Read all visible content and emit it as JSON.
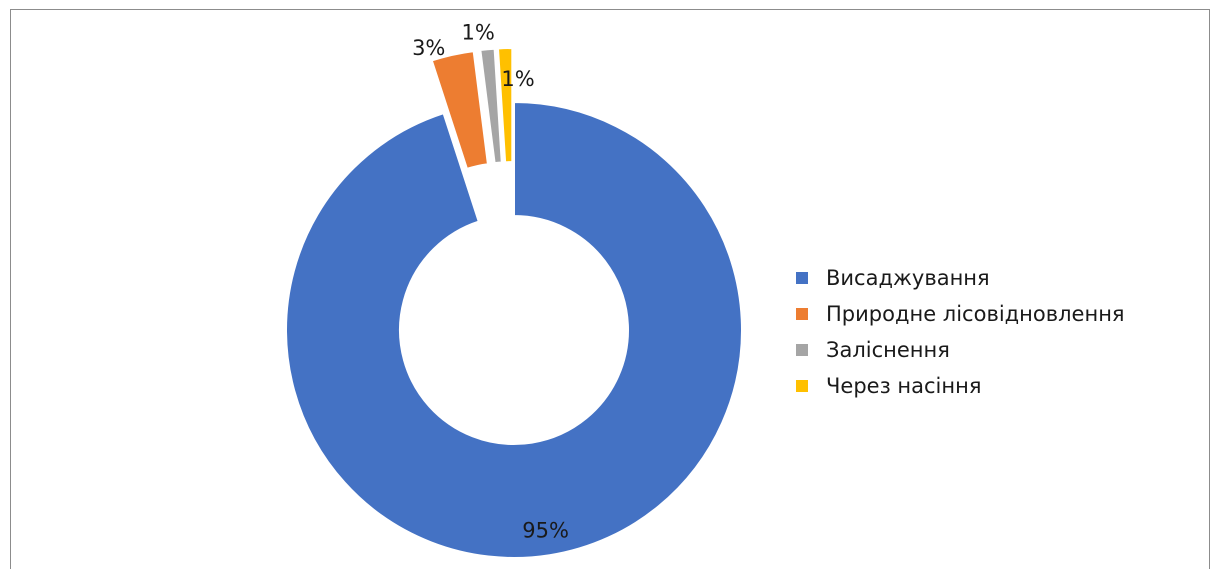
{
  "chart_data": {
    "type": "pie",
    "variant": "donut",
    "title": "",
    "categories": [
      "Висаджування",
      "Природне лісовідновлення",
      "Заліснення",
      "Через насіння"
    ],
    "values": [
      95,
      3,
      1,
      1
    ],
    "value_labels": [
      "95%",
      "3%",
      "1%",
      "1%"
    ],
    "colors": [
      "#4472C4",
      "#ED7D31",
      "#A5A5A5",
      "#FFC000"
    ],
    "exploded": [
      false,
      true,
      true,
      true
    ],
    "legend_position": "right"
  }
}
